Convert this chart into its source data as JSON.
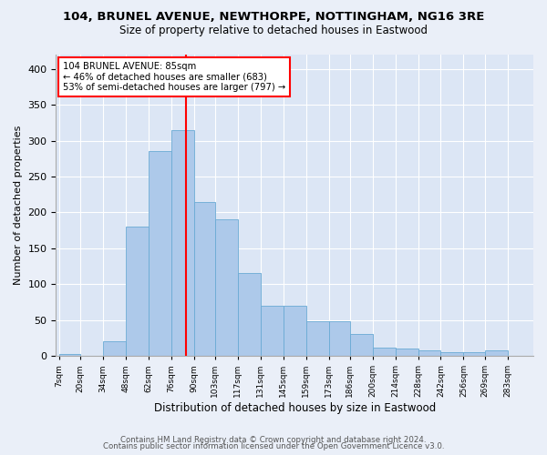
{
  "title1": "104, BRUNEL AVENUE, NEWTHORPE, NOTTINGHAM, NG16 3RE",
  "title2": "Size of property relative to detached houses in Eastwood",
  "xlabel": "Distribution of detached houses by size in Eastwood",
  "ylabel": "Number of detached properties",
  "footer1": "Contains HM Land Registry data © Crown copyright and database right 2024.",
  "footer2": "Contains public sector information licensed under the Open Government Licence v3.0.",
  "annotation_line1": "104 BRUNEL AVENUE: 85sqm",
  "annotation_line2": "← 46% of detached houses are smaller (683)",
  "annotation_line3": "53% of semi-detached houses are larger (797) →",
  "bin_labels": [
    "7sqm",
    "20sqm",
    "34sqm",
    "48sqm",
    "62sqm",
    "76sqm",
    "90sqm",
    "103sqm",
    "117sqm",
    "131sqm",
    "145sqm",
    "159sqm",
    "173sqm",
    "186sqm",
    "200sqm",
    "214sqm",
    "228sqm",
    "242sqm",
    "256sqm",
    "269sqm",
    "283sqm"
  ],
  "bin_edges": [
    7,
    20,
    34,
    48,
    62,
    76,
    90,
    103,
    117,
    131,
    145,
    159,
    173,
    186,
    200,
    214,
    228,
    242,
    256,
    269,
    283,
    297
  ],
  "bar_heights": [
    2,
    0,
    20,
    180,
    285,
    315,
    215,
    190,
    115,
    70,
    70,
    48,
    48,
    30,
    12,
    10,
    8,
    5,
    5,
    8,
    0
  ],
  "bar_color": "#adc9ea",
  "bar_edge_color": "#6aaad4",
  "red_line_x": 85,
  "bg_color": "#eaeff8",
  "plot_bg_color": "#dce6f5",
  "ylim": [
    0,
    420
  ],
  "yticks": [
    0,
    50,
    100,
    150,
    200,
    250,
    300,
    350,
    400
  ]
}
